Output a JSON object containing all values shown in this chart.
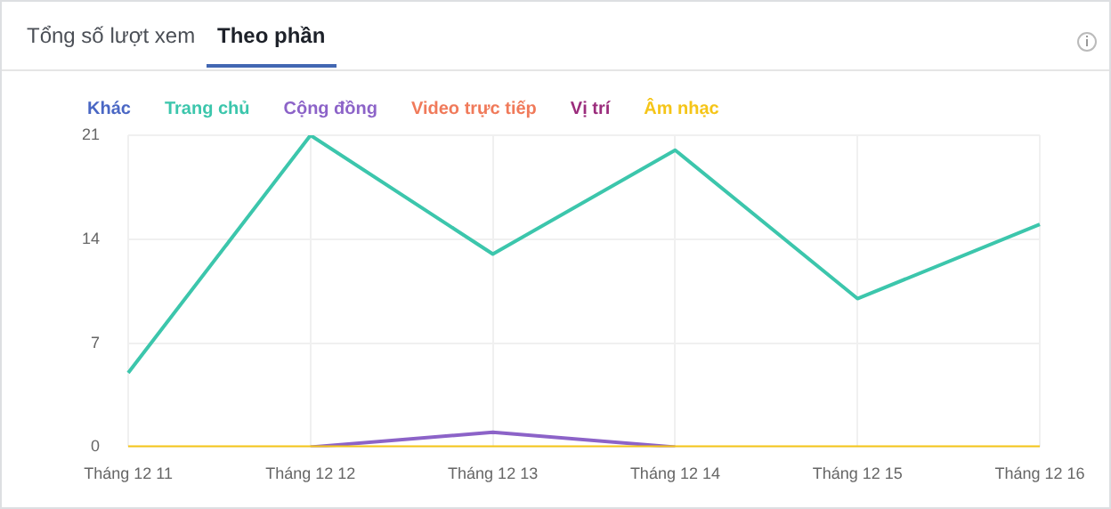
{
  "chart_data": {
    "type": "line",
    "categories": [
      "Tháng 12 11",
      "Tháng 12 12",
      "Tháng 12 13",
      "Tháng 12 14",
      "Tháng 12 15",
      "Tháng 12 16"
    ],
    "series": [
      {
        "name": "Khác",
        "color": "#4a67c4",
        "values": [
          null,
          null,
          null,
          null,
          null,
          null
        ]
      },
      {
        "name": "Trang chủ",
        "color": "#3cc6ac",
        "values": [
          5,
          21,
          13,
          20,
          10,
          15
        ]
      },
      {
        "name": "Cộng đồng",
        "color": "#8c63c8",
        "values": [
          null,
          0,
          1,
          0,
          null,
          null
        ]
      },
      {
        "name": "Video trực tiếp",
        "color": "#f07a5a",
        "values": [
          null,
          null,
          null,
          null,
          null,
          null
        ]
      },
      {
        "name": "Vị trí",
        "color": "#9b2c7c",
        "values": [
          null,
          null,
          null,
          null,
          null,
          null
        ]
      },
      {
        "name": "Âm nhạc",
        "color": "#f5c518",
        "values": [
          0,
          0,
          0,
          0,
          0,
          0
        ]
      }
    ],
    "ylim": [
      0,
      21
    ],
    "yticks": [
      0,
      7,
      14,
      21
    ],
    "grid": true,
    "legend": "top left",
    "marker": "none",
    "line_style": "solid",
    "annotations": [
      "Tổng số lượt xem",
      "Theo phần"
    ]
  }
}
